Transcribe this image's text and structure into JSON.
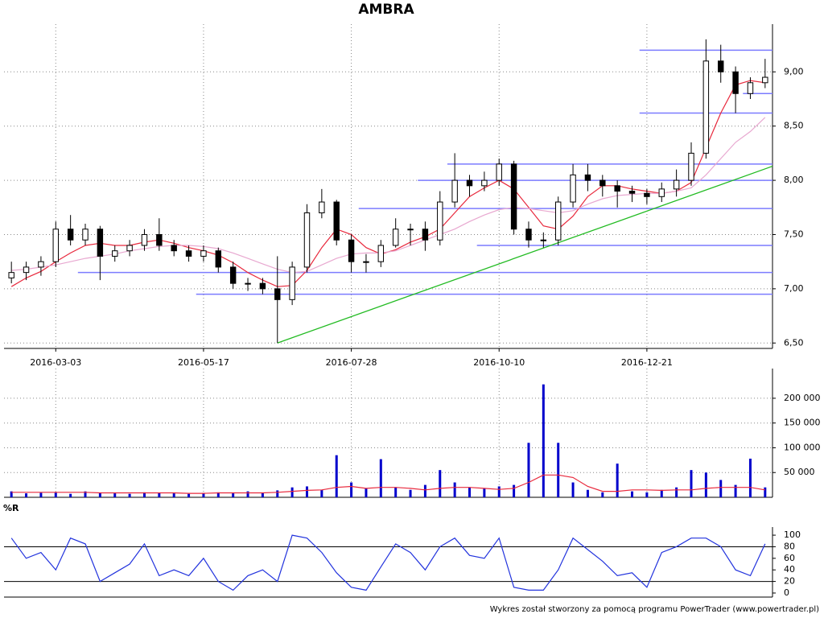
{
  "chart_data": {
    "type": "candlestick",
    "title": "AMBRA",
    "categories": [
      null,
      null,
      null,
      "2016-03-03",
      null,
      null,
      null,
      null,
      null,
      null,
      null,
      null,
      null,
      "2016-05-17",
      null,
      null,
      null,
      null,
      null,
      null,
      null,
      null,
      null,
      "2016-07-28",
      null,
      null,
      null,
      null,
      null,
      null,
      null,
      null,
      null,
      "2016-10-10",
      null,
      null,
      null,
      null,
      null,
      null,
      null,
      null,
      null,
      "2016-12-21",
      null,
      null,
      null,
      null,
      null,
      null,
      null,
      null
    ],
    "open": [
      7.1,
      7.15,
      7.2,
      7.25,
      7.55,
      7.45,
      7.55,
      7.3,
      7.35,
      7.4,
      7.5,
      7.4,
      7.35,
      7.3,
      7.35,
      7.2,
      7.05,
      7.05,
      7.0,
      6.9,
      7.2,
      7.7,
      7.8,
      7.45,
      7.25,
      7.25,
      7.4,
      7.55,
      7.55,
      7.45,
      7.8,
      8.0,
      7.95,
      8.0,
      8.15,
      7.55,
      7.45,
      7.45,
      7.8,
      8.05,
      8.0,
      7.95,
      7.9,
      7.88,
      7.85,
      7.92,
      8.0,
      8.25,
      9.1,
      9.0,
      8.8,
      8.9
    ],
    "high": [
      7.25,
      7.25,
      7.3,
      7.62,
      7.68,
      7.6,
      7.58,
      7.4,
      7.45,
      7.55,
      7.65,
      7.45,
      7.4,
      7.4,
      7.38,
      7.25,
      7.1,
      7.1,
      7.3,
      7.25,
      7.78,
      7.92,
      7.82,
      7.5,
      7.32,
      7.45,
      7.65,
      7.6,
      7.62,
      7.9,
      8.25,
      8.05,
      8.08,
      8.2,
      8.18,
      7.62,
      7.52,
      7.85,
      8.15,
      8.15,
      8.05,
      8.0,
      7.95,
      7.92,
      7.98,
      8.1,
      8.35,
      9.3,
      9.25,
      9.05,
      8.95,
      9.12
    ],
    "low": [
      7.05,
      7.08,
      7.12,
      7.2,
      7.4,
      7.4,
      7.08,
      7.25,
      7.3,
      7.35,
      7.35,
      7.3,
      7.25,
      7.25,
      7.15,
      7.0,
      6.98,
      6.95,
      6.5,
      6.85,
      7.15,
      7.65,
      7.4,
      7.15,
      7.15,
      7.2,
      7.38,
      7.4,
      7.35,
      7.4,
      7.75,
      7.85,
      7.9,
      7.95,
      7.5,
      7.38,
      7.38,
      7.4,
      7.75,
      7.9,
      7.85,
      7.75,
      7.8,
      7.78,
      7.8,
      7.85,
      7.95,
      8.2,
      8.9,
      8.62,
      8.75,
      8.85
    ],
    "close": [
      7.15,
      7.2,
      7.25,
      7.55,
      7.45,
      7.55,
      7.3,
      7.35,
      7.4,
      7.5,
      7.4,
      7.35,
      7.3,
      7.35,
      7.2,
      7.05,
      7.05,
      7.0,
      6.9,
      7.2,
      7.7,
      7.8,
      7.45,
      7.25,
      7.25,
      7.4,
      7.55,
      7.55,
      7.45,
      7.8,
      8.0,
      7.95,
      8.0,
      8.15,
      7.55,
      7.45,
      7.45,
      7.8,
      8.05,
      8.0,
      7.95,
      7.9,
      7.88,
      7.85,
      7.92,
      8.0,
      8.25,
      9.1,
      9.0,
      8.8,
      8.9,
      8.95
    ],
    "moving_averages": [
      {
        "color": "#e8283c",
        "values": [
          7.02,
          7.1,
          7.16,
          7.25,
          7.33,
          7.4,
          7.42,
          7.4,
          7.4,
          7.43,
          7.45,
          7.42,
          7.38,
          7.35,
          7.31,
          7.24,
          7.15,
          7.08,
          7.02,
          7.03,
          7.17,
          7.38,
          7.55,
          7.5,
          7.38,
          7.32,
          7.36,
          7.43,
          7.48,
          7.55,
          7.7,
          7.85,
          7.93,
          8.0,
          7.92,
          7.75,
          7.58,
          7.55,
          7.67,
          7.85,
          7.95,
          7.95,
          7.92,
          7.9,
          7.88,
          7.9,
          7.98,
          8.3,
          8.62,
          8.88,
          8.92,
          8.9
        ]
      },
      {
        "color": "#e8a8d0",
        "values": [
          7.17,
          7.18,
          7.2,
          7.22,
          7.25,
          7.28,
          7.3,
          7.32,
          7.35,
          7.37,
          7.39,
          7.4,
          7.4,
          7.39,
          7.37,
          7.33,
          7.28,
          7.23,
          7.18,
          7.15,
          7.16,
          7.22,
          7.28,
          7.32,
          7.33,
          7.33,
          7.35,
          7.4,
          7.45,
          7.5,
          7.55,
          7.62,
          7.68,
          7.73,
          7.75,
          7.74,
          7.72,
          7.7,
          7.72,
          7.78,
          7.83,
          7.86,
          7.87,
          7.88,
          7.88,
          7.9,
          7.93,
          8.05,
          8.2,
          8.35,
          8.45,
          8.58
        ]
      }
    ],
    "levels": [
      {
        "y": 6.95,
        "x0": 13
      },
      {
        "y": 7.15,
        "x0": 5
      },
      {
        "y": 7.4,
        "x0": 32
      },
      {
        "y": 7.74,
        "x0": 24
      },
      {
        "y": 8.0,
        "x0": 28
      },
      {
        "y": 8.15,
        "x0": 30
      },
      {
        "y": 8.62,
        "x0": 43
      },
      {
        "y": 8.8,
        "x0": 50
      },
      {
        "y": 9.2,
        "x0": 43
      }
    ],
    "trendline": {
      "x": [
        18,
        51.5
      ],
      "y": [
        6.5,
        8.13
      ]
    },
    "ylim": [
      6.45,
      9.44
    ],
    "yticks": [
      {
        "value": 6.5,
        "label": "6,50"
      },
      {
        "value": 7,
        "label": "7,00"
      },
      {
        "value": 7.5,
        "label": "7,50"
      },
      {
        "value": 8,
        "label": "8,00"
      },
      {
        "value": 8.5,
        "label": "8,50"
      },
      {
        "value": 9,
        "label": "9,00"
      }
    ],
    "volume": [
      12000,
      8000,
      9000,
      10000,
      7000,
      12000,
      9000,
      8000,
      7000,
      10000,
      9000,
      8000,
      7000,
      9000,
      10000,
      8000,
      12000,
      9000,
      14000,
      20000,
      22000,
      15000,
      85000,
      30000,
      18000,
      77000,
      20000,
      15000,
      25000,
      55000,
      30000,
      20000,
      18000,
      22000,
      25000,
      110000,
      228000,
      110000,
      30000,
      15000,
      10000,
      68000,
      12000,
      10000,
      15000,
      20000,
      55000,
      50000,
      35000,
      25000,
      78000,
      20000
    ],
    "volume_ma": [
      10000,
      10000,
      10000,
      10000,
      10000,
      10000,
      9000,
      9000,
      9000,
      9000,
      9000,
      9000,
      8000,
      8000,
      9000,
      9000,
      9000,
      9000,
      10000,
      12000,
      14000,
      15000,
      20000,
      22000,
      18000,
      20000,
      20000,
      18000,
      15000,
      18000,
      20000,
      20000,
      18000,
      16000,
      18000,
      30000,
      45000,
      45000,
      40000,
      22000,
      12000,
      12000,
      15000,
      15000,
      14000,
      15000,
      15000,
      18000,
      20000,
      20000,
      20000,
      15000
    ],
    "volume_ylim": [
      0,
      260000
    ],
    "volume_yticks": [
      {
        "value": 50000,
        "label": "50 000"
      },
      {
        "value": 100000,
        "label": "100 000"
      },
      {
        "value": 150000,
        "label": "150 000"
      },
      {
        "value": 200000,
        "label": "200 000"
      }
    ],
    "indicator_label": "%R",
    "wr": [
      95,
      60,
      70,
      40,
      95,
      85,
      20,
      35,
      50,
      85,
      30,
      40,
      30,
      60,
      20,
      5,
      30,
      40,
      20,
      100,
      95,
      70,
      35,
      10,
      5,
      45,
      85,
      70,
      40,
      80,
      95,
      65,
      60,
      95,
      10,
      5,
      5,
      40,
      95,
      75,
      55,
      30,
      35,
      10,
      70,
      80,
      95,
      95,
      80,
      40,
      30,
      85
    ],
    "wr_ylim": [
      -7,
      114
    ],
    "wr_yticks": [
      0,
      20,
      40,
      60,
      80,
      100
    ],
    "wr_bands": [
      20,
      80
    ],
    "footer": "Wykres został stworzony za pomocą programu PowerTrader (www.powertrader.pl)"
  }
}
